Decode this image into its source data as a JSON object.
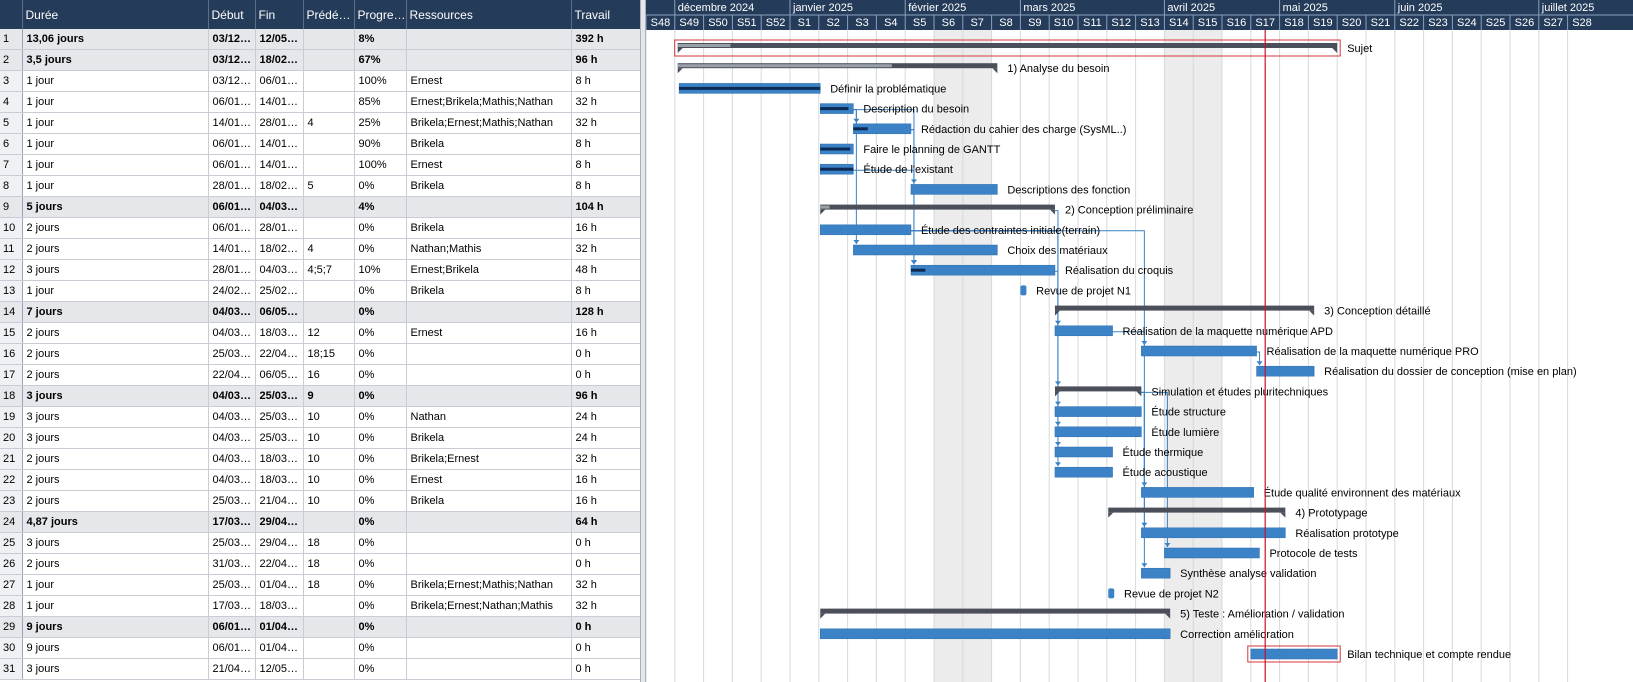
{
  "columns": [
    "",
    "Durée",
    "Début",
    "Fin",
    "Prédé…",
    "Progre…",
    "Ressources",
    "Travail"
  ],
  "rows": [
    {
      "id": "1",
      "duration": "13,06 jours",
      "start": "03/12…",
      "end": "12/05…",
      "pred": "",
      "progress": "8%",
      "resources": "",
      "work": "392 h",
      "summary": true
    },
    {
      "id": "2",
      "duration": "3,5 jours",
      "start": "03/12…",
      "end": "18/02…",
      "pred": "",
      "progress": "67%",
      "resources": "",
      "work": "96 h",
      "summary": true
    },
    {
      "id": "3",
      "duration": "1 jour",
      "start": "03/12…",
      "end": "06/01…",
      "pred": "",
      "progress": "100%",
      "resources": "Ernest",
      "work": "8 h",
      "summary": false
    },
    {
      "id": "4",
      "duration": "1 jour",
      "start": "06/01…",
      "end": "14/01…",
      "pred": "",
      "progress": "85%",
      "resources": "Ernest;Brikela;Mathis;Nathan",
      "work": "32 h",
      "summary": false
    },
    {
      "id": "5",
      "duration": "1 jour",
      "start": "14/01…",
      "end": "28/01…",
      "pred": "4",
      "progress": "25%",
      "resources": "Brikela;Ernest;Mathis;Nathan",
      "work": "32 h",
      "summary": false
    },
    {
      "id": "6",
      "duration": "1 jour",
      "start": "06/01…",
      "end": "14/01…",
      "pred": "",
      "progress": "90%",
      "resources": "Brikela",
      "work": "8 h",
      "summary": false
    },
    {
      "id": "7",
      "duration": "1 jour",
      "start": "06/01…",
      "end": "14/01…",
      "pred": "",
      "progress": "100%",
      "resources": "Ernest",
      "work": "8 h",
      "summary": false
    },
    {
      "id": "8",
      "duration": "1 jour",
      "start": "28/01…",
      "end": "18/02…",
      "pred": "5",
      "progress": "0%",
      "resources": "Brikela",
      "work": "8 h",
      "summary": false
    },
    {
      "id": "9",
      "duration": "5 jours",
      "start": "06/01…",
      "end": "04/03…",
      "pred": "",
      "progress": "4%",
      "resources": "",
      "work": "104 h",
      "summary": true
    },
    {
      "id": "10",
      "duration": "2 jours",
      "start": "06/01…",
      "end": "28/01…",
      "pred": "",
      "progress": "0%",
      "resources": "Brikela",
      "work": "16 h",
      "summary": false
    },
    {
      "id": "11",
      "duration": "2 jours",
      "start": "14/01…",
      "end": "18/02…",
      "pred": "4",
      "progress": "0%",
      "resources": "Nathan;Mathis",
      "work": "32 h",
      "summary": false
    },
    {
      "id": "12",
      "duration": "3 jours",
      "start": "28/01…",
      "end": "04/03…",
      "pred": "4;5;7",
      "progress": "10%",
      "resources": "Ernest;Brikela",
      "work": "48 h",
      "summary": false
    },
    {
      "id": "13",
      "duration": "1 jour",
      "start": "24/02…",
      "end": "25/02…",
      "pred": "",
      "progress": "0%",
      "resources": "Brikela",
      "work": "8 h",
      "summary": false
    },
    {
      "id": "14",
      "duration": "7 jours",
      "start": "04/03…",
      "end": "06/05…",
      "pred": "",
      "progress": "0%",
      "resources": "",
      "work": "128 h",
      "summary": true
    },
    {
      "id": "15",
      "duration": "2 jours",
      "start": "04/03…",
      "end": "18/03…",
      "pred": "12",
      "progress": "0%",
      "resources": "Ernest",
      "work": "16 h",
      "summary": false
    },
    {
      "id": "16",
      "duration": "2 jours",
      "start": "25/03…",
      "end": "22/04…",
      "pred": "18;15",
      "progress": "0%",
      "resources": "",
      "work": "0 h",
      "summary": false
    },
    {
      "id": "17",
      "duration": "2 jours",
      "start": "22/04…",
      "end": "06/05…",
      "pred": "16",
      "progress": "0%",
      "resources": "",
      "work": "0 h",
      "summary": false
    },
    {
      "id": "18",
      "duration": "3 jours",
      "start": "04/03…",
      "end": "25/03…",
      "pred": "9",
      "progress": "0%",
      "resources": "",
      "work": "96 h",
      "summary": true
    },
    {
      "id": "19",
      "duration": "3 jours",
      "start": "04/03…",
      "end": "25/03…",
      "pred": "10",
      "progress": "0%",
      "resources": "Nathan",
      "work": "24 h",
      "summary": false
    },
    {
      "id": "20",
      "duration": "3 jours",
      "start": "04/03…",
      "end": "25/03…",
      "pred": "10",
      "progress": "0%",
      "resources": "Brikela",
      "work": "24 h",
      "summary": false
    },
    {
      "id": "21",
      "duration": "2 jours",
      "start": "04/03…",
      "end": "18/03…",
      "pred": "10",
      "progress": "0%",
      "resources": "Brikela;Ernest",
      "work": "32 h",
      "summary": false
    },
    {
      "id": "22",
      "duration": "2 jours",
      "start": "04/03…",
      "end": "18/03…",
      "pred": "10",
      "progress": "0%",
      "resources": "Ernest",
      "work": "16 h",
      "summary": false
    },
    {
      "id": "23",
      "duration": "2 jours",
      "start": "25/03…",
      "end": "21/04…",
      "pred": "10",
      "progress": "0%",
      "resources": "Brikela",
      "work": "16 h",
      "summary": false
    },
    {
      "id": "24",
      "duration": "4,87 jours",
      "start": "17/03…",
      "end": "29/04…",
      "pred": "",
      "progress": "0%",
      "resources": "",
      "work": "64 h",
      "summary": true
    },
    {
      "id": "25",
      "duration": "3 jours",
      "start": "25/03…",
      "end": "29/04…",
      "pred": "18",
      "progress": "0%",
      "resources": "",
      "work": "0 h",
      "summary": false
    },
    {
      "id": "26",
      "duration": "2 jours",
      "start": "31/03…",
      "end": "22/04…",
      "pred": "18",
      "progress": "0%",
      "resources": "",
      "work": "0 h",
      "summary": false
    },
    {
      "id": "27",
      "duration": "1 jour",
      "start": "25/03…",
      "end": "01/04…",
      "pred": "18",
      "progress": "0%",
      "resources": "Brikela;Ernest;Mathis;Nathan",
      "work": "32 h",
      "summary": false
    },
    {
      "id": "28",
      "duration": "1 jour",
      "start": "17/03…",
      "end": "18/03…",
      "pred": "",
      "progress": "0%",
      "resources": "Brikela;Ernest;Nathan;Mathis",
      "work": "32 h",
      "summary": false
    },
    {
      "id": "29",
      "duration": "9 jours",
      "start": "06/01…",
      "end": "01/04…",
      "pred": "",
      "progress": "0%",
      "resources": "",
      "work": "0 h",
      "summary": true
    },
    {
      "id": "30",
      "duration": "9 jours",
      "start": "06/01…",
      "end": "01/04…",
      "pred": "",
      "progress": "0%",
      "resources": "",
      "work": "0 h",
      "summary": false
    },
    {
      "id": "31",
      "duration": "3 jours",
      "start": "21/04…",
      "end": "12/05…",
      "pred": "",
      "progress": "0%",
      "resources": "",
      "work": "0 h",
      "summary": false
    }
  ],
  "timeline": {
    "months": [
      "décembre 2024",
      "janvier 2025",
      "février 2025",
      "mars 2025",
      "avril 2025",
      "mai 2025",
      "juin 2025",
      "juillet 2025"
    ],
    "weeks": [
      "S48",
      "S49",
      "S50",
      "S51",
      "S52",
      "S1",
      "S2",
      "S3",
      "S4",
      "S5",
      "S6",
      "S7",
      "S8",
      "S9",
      "S10",
      "S11",
      "S12",
      "S13",
      "S14",
      "S15",
      "S16",
      "S17",
      "S18",
      "S19",
      "S20",
      "S21",
      "S22",
      "S23",
      "S24",
      "S25",
      "S26",
      "S27",
      "S28"
    ],
    "month_start_weeks": [
      1,
      5,
      9,
      13,
      18,
      22,
      26,
      31
    ]
  },
  "gantt": [
    {
      "row": 1,
      "label": "Sujet",
      "kind": "summary",
      "start": 1.1,
      "end": 24.0,
      "progress": 0.08,
      "highlight": true
    },
    {
      "row": 2,
      "label": "1) Analyse du besoin",
      "kind": "summary",
      "start": 1.1,
      "end": 12.2,
      "progress": 0.67
    },
    {
      "row": 3,
      "label": "Définir la problématique",
      "kind": "task",
      "start": 1.15,
      "end": 6.05,
      "progress": 1.0
    },
    {
      "row": 4,
      "label": "Description du besoin",
      "kind": "task",
      "start": 6.05,
      "end": 7.2,
      "progress": 0.85
    },
    {
      "row": 5,
      "label": "Rédaction du cahier des charge (SysML..)",
      "kind": "task",
      "start": 7.2,
      "end": 9.2,
      "progress": 0.25
    },
    {
      "row": 6,
      "label": "Faire le planning de GANTT",
      "kind": "task",
      "start": 6.05,
      "end": 7.2,
      "progress": 0.9
    },
    {
      "row": 7,
      "label": "Étude de l'existant",
      "kind": "task",
      "start": 6.05,
      "end": 7.2,
      "progress": 1.0
    },
    {
      "row": 8,
      "label": "Descriptions des fonction",
      "kind": "task",
      "start": 9.2,
      "end": 12.2,
      "progress": 0.0
    },
    {
      "row": 9,
      "label": "2) Conception préliminaire",
      "kind": "summary",
      "start": 6.05,
      "end": 14.2,
      "progress": 0.04
    },
    {
      "row": 10,
      "label": "Étude des contraintes initiale(terrain)",
      "kind": "task",
      "start": 6.05,
      "end": 9.2,
      "progress": 0.0
    },
    {
      "row": 11,
      "label": "Choix des matériaux",
      "kind": "task",
      "start": 7.2,
      "end": 12.2,
      "progress": 0.0
    },
    {
      "row": 12,
      "label": "Réalisation du croquis",
      "kind": "task",
      "start": 9.2,
      "end": 14.2,
      "progress": 0.1
    },
    {
      "row": 13,
      "label": "Revue de projet N1",
      "kind": "milestone",
      "start": 13.0,
      "end": 13.2,
      "progress": 0.0
    },
    {
      "row": 14,
      "label": "3) Conception détaillé",
      "kind": "summary",
      "start": 14.2,
      "end": 23.2,
      "progress": 0.0
    },
    {
      "row": 15,
      "label": "Réalisation de la maquette numérique APD",
      "kind": "task",
      "start": 14.2,
      "end": 16.2,
      "progress": 0.0
    },
    {
      "row": 16,
      "label": "Réalisation de la maquette numérique PRO",
      "kind": "task",
      "start": 17.2,
      "end": 21.2,
      "progress": 0.0
    },
    {
      "row": 17,
      "label": "Réalisation du dossier de conception (mise en plan)",
      "kind": "task",
      "start": 21.2,
      "end": 23.2,
      "progress": 0.0
    },
    {
      "row": 18,
      "label": "Simulation et études pluritechniques",
      "kind": "summary",
      "start": 14.2,
      "end": 17.2,
      "progress": 0.0
    },
    {
      "row": 19,
      "label": "Étude structure",
      "kind": "task",
      "start": 14.2,
      "end": 17.2,
      "progress": 0.0
    },
    {
      "row": 20,
      "label": "Étude lumière",
      "kind": "task",
      "start": 14.2,
      "end": 17.2,
      "progress": 0.0
    },
    {
      "row": 21,
      "label": "Étude thermique",
      "kind": "task",
      "start": 14.2,
      "end": 16.2,
      "progress": 0.0
    },
    {
      "row": 22,
      "label": "Étude acoustique",
      "kind": "task",
      "start": 14.2,
      "end": 16.2,
      "progress": 0.0
    },
    {
      "row": 23,
      "label": "Étude qualité environnent des matériaux",
      "kind": "task",
      "start": 17.2,
      "end": 21.1,
      "progress": 0.0
    },
    {
      "row": 24,
      "label": "4) Prototypage",
      "kind": "summary",
      "start": 16.05,
      "end": 22.2,
      "progress": 0.0
    },
    {
      "row": 25,
      "label": "Réalisation prototype",
      "kind": "task",
      "start": 17.2,
      "end": 22.2,
      "progress": 0.0
    },
    {
      "row": 26,
      "label": "Protocole de tests",
      "kind": "task",
      "start": 18.0,
      "end": 21.3,
      "progress": 0.0
    },
    {
      "row": 27,
      "label": "Synthèse analyse validation",
      "kind": "task",
      "start": 17.2,
      "end": 18.2,
      "progress": 0.0
    },
    {
      "row": 28,
      "label": "Revue de projet N2",
      "kind": "milestone",
      "start": 16.05,
      "end": 16.25,
      "progress": 0.0
    },
    {
      "row": 29,
      "label": "5) Teste : Amélioration / validation",
      "kind": "summary",
      "start": 6.05,
      "end": 18.2,
      "progress": 0.0
    },
    {
      "row": 30,
      "label": "Correction amélioration",
      "kind": "task",
      "start": 6.05,
      "end": 18.2,
      "progress": 0.0
    },
    {
      "row": 31,
      "label": "Bilan technique et compte rendue",
      "kind": "task",
      "start": 21.0,
      "end": 24.0,
      "progress": 0.0,
      "highlight": true
    }
  ],
  "links": [
    {
      "from": 4,
      "to": 5
    },
    {
      "from": 5,
      "to": 8
    },
    {
      "from": 4,
      "to": 11
    },
    {
      "from": 4,
      "to": 12
    },
    {
      "from": 5,
      "to": 12
    },
    {
      "from": 7,
      "to": 12
    },
    {
      "from": 12,
      "to": 15
    },
    {
      "from": 9,
      "to": 18
    },
    {
      "from": 10,
      "to": 19
    },
    {
      "from": 10,
      "to": 20
    },
    {
      "from": 10,
      "to": 21
    },
    {
      "from": 10,
      "to": 22
    },
    {
      "from": 10,
      "to": 23
    },
    {
      "from": 15,
      "to": 16
    },
    {
      "from": 16,
      "to": 17
    },
    {
      "from": 18,
      "to": 25
    },
    {
      "from": 18,
      "to": 26
    },
    {
      "from": 18,
      "to": 27
    }
  ],
  "today_week": 21.5,
  "colors": {
    "header": "#243b5a",
    "task": "#3b82c6",
    "task_border": "#2e6fae",
    "summary": "#4a4f5a",
    "progress": "#0d2a55",
    "link": "#3b82c6",
    "today": "#c8102e",
    "highlight": "#d4373e",
    "weekend": "#ececec"
  }
}
